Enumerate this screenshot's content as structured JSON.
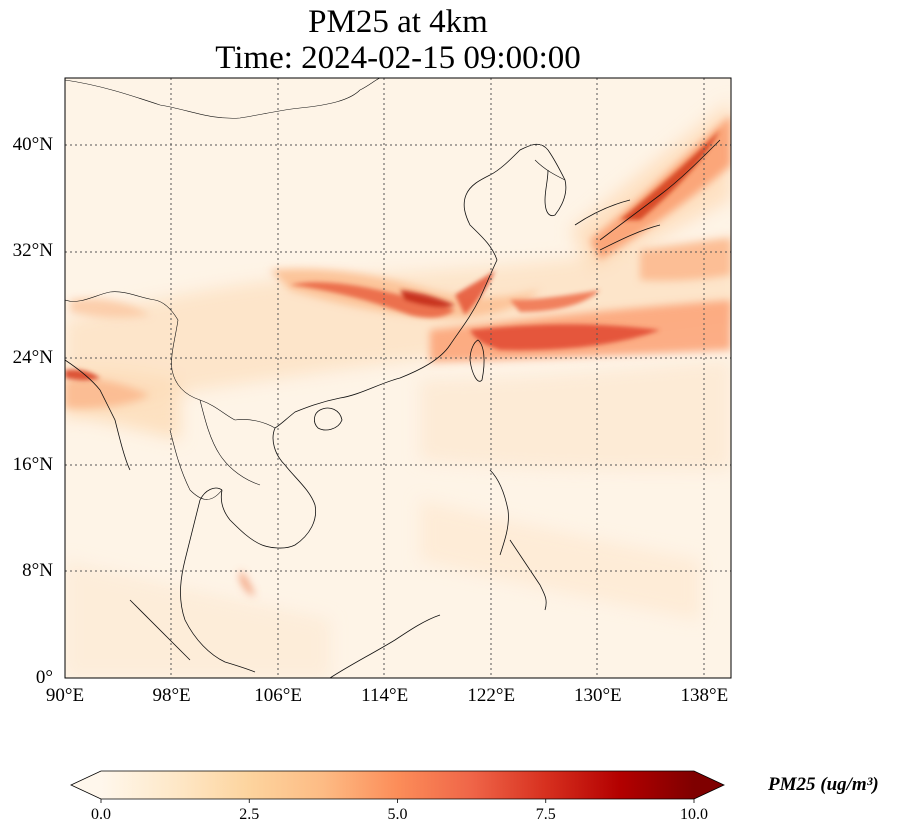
{
  "title": {
    "line1": "PM25 at 4km",
    "line2": "Time: 2024-02-15 09:00:00"
  },
  "map": {
    "extent": {
      "lon_min": 90,
      "lon_max": 140,
      "lat_min": 0,
      "lat_max": 45
    },
    "gridlines": true,
    "lat_labels": [
      {
        "value": 40,
        "label": "40°N"
      },
      {
        "value": 32,
        "label": "32°N"
      },
      {
        "value": 24,
        "label": "24°N"
      },
      {
        "value": 16,
        "label": "16°N"
      },
      {
        "value": 8,
        "label": "8°N"
      },
      {
        "value": 0,
        "label": "0°"
      }
    ],
    "lon_labels": [
      {
        "value": 90,
        "label": "90°E"
      },
      {
        "value": 98,
        "label": "98°E"
      },
      {
        "value": 106,
        "label": "106°E"
      },
      {
        "value": 114,
        "label": "114°E"
      },
      {
        "value": 122,
        "label": "122°E"
      },
      {
        "value": 130,
        "label": "130°E"
      },
      {
        "value": 138,
        "label": "138°E"
      }
    ]
  },
  "colorbar": {
    "label": "PM25 (ug/m³)",
    "min": 0,
    "max": 10,
    "extend": "both",
    "colormap": "OrRd",
    "colors": [
      "#fff7ec",
      "#fee8c8",
      "#fdd49e",
      "#fdbb84",
      "#fc8d59",
      "#ef6548",
      "#d7301f",
      "#b30000",
      "#7f0000"
    ],
    "ticks": [
      {
        "value": 0,
        "label": "0.0"
      },
      {
        "value": 2.5,
        "label": "2.5"
      },
      {
        "value": 5,
        "label": "5.0"
      },
      {
        "value": 7.5,
        "label": "7.5"
      },
      {
        "value": 10,
        "label": "10.0"
      }
    ]
  }
}
